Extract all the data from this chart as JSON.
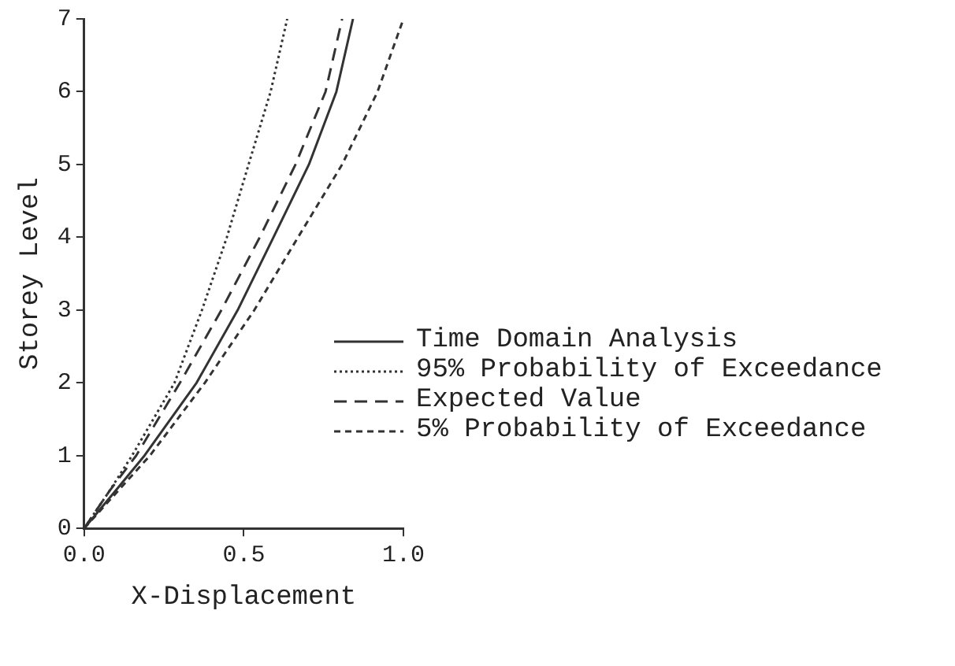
{
  "chart_data": {
    "type": "line",
    "xlabel": "X-Displacement",
    "ylabel": "Storey Level",
    "xlim": [
      0,
      1
    ],
    "xticks": [
      {
        "value": 0,
        "label": "0.0"
      },
      {
        "value": 0.5,
        "label": "0.5"
      },
      {
        "value": 1,
        "label": "1.0"
      }
    ],
    "ylim": [
      0,
      7
    ],
    "yticks": [
      0,
      1,
      2,
      3,
      4,
      5,
      6,
      7
    ],
    "grid": false,
    "legend": "right",
    "marker": "none",
    "series": [
      {
        "name": "Time Domain Analysis",
        "color": "#333333",
        "line_style": "solid",
        "x": [
          0,
          0.095,
          0.189,
          0.352,
          0.481,
          0.593,
          0.704,
          0.79,
          0.842
        ],
        "values": [
          0,
          0.5,
          1,
          2,
          3,
          4,
          5,
          6,
          7
        ]
      },
      {
        "name": "95% Probability of Exceedance",
        "color": "#333333",
        "line_style": "dotted",
        "x": [
          0,
          0.077,
          0.15,
          0.283,
          0.369,
          0.447,
          0.515,
          0.584,
          0.636
        ],
        "values": [
          0,
          0.5,
          1,
          2,
          3,
          4,
          5,
          6,
          7
        ]
      },
      {
        "name": "Expected Value",
        "color": "#333333",
        "line_style": "dashed",
        "x": [
          0,
          0.077,
          0.163,
          0.3,
          0.43,
          0.55,
          0.662,
          0.756,
          0.808
        ],
        "values": [
          0,
          0.5,
          1,
          2,
          3,
          4,
          5,
          6,
          7
        ]
      },
      {
        "name": "5% Probability of Exceedance",
        "color": "#333333",
        "line_style": "dashed",
        "x": [
          0,
          0.103,
          0.206,
          0.378,
          0.533,
          0.67,
          0.808,
          0.919,
          1.0
        ],
        "values": [
          0,
          0.5,
          1,
          2,
          3,
          4,
          5,
          6,
          7
        ]
      }
    ]
  }
}
